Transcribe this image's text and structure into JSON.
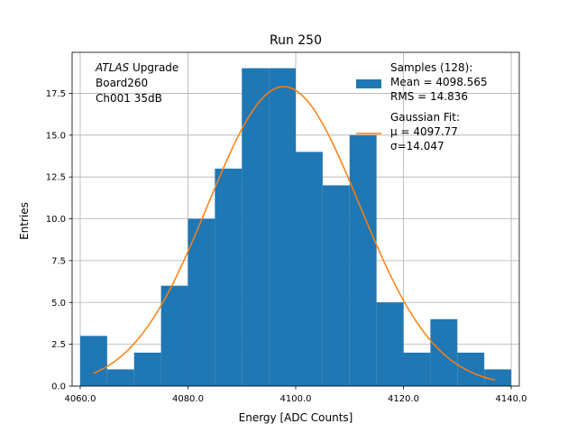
{
  "chart_data": {
    "type": "bar",
    "title": "Run 250",
    "xlabel": "Energy [ADC Counts]",
    "ylabel": "Entries",
    "xlim": [
      4058.5,
      4141.5
    ],
    "ylim": [
      0,
      19.95
    ],
    "grid": true,
    "x_ticks": [
      4060,
      4080,
      4100,
      4120,
      4140
    ],
    "x_tick_labels": [
      "4060.0",
      "4080.0",
      "4100.0",
      "4120.0",
      "4140.0"
    ],
    "y_ticks": [
      0,
      2.5,
      5,
      7.5,
      10,
      12.5,
      15,
      17.5
    ],
    "y_tick_labels": [
      "0.0",
      "2.5",
      "5.0",
      "7.5",
      "10.0",
      "12.5",
      "15.0",
      "17.5"
    ],
    "histogram": {
      "bin_edges": [
        4060,
        4065,
        4070,
        4075,
        4080,
        4085,
        4090,
        4095,
        4100,
        4105,
        4110,
        4115,
        4120,
        4125,
        4130,
        4135,
        4140
      ],
      "counts": [
        3,
        1,
        2,
        6,
        10,
        13,
        19,
        19,
        14,
        12,
        15,
        5,
        2,
        4,
        2,
        1
      ],
      "color": "#1f77b4"
    },
    "fit": {
      "type": "gaussian",
      "amplitude": 17.9,
      "mu": 4097.77,
      "sigma": 14.047,
      "x_range": [
        4062.5,
        4137
      ],
      "color": "#ff7f0e"
    },
    "annotation": {
      "lines": [
        {
          "italic": "ATLAS",
          "rest": " Upgrade"
        },
        {
          "italic": "",
          "rest": " Board260"
        },
        {
          "italic": "",
          "rest": " Ch001 35dB"
        }
      ],
      "position": "top-left"
    },
    "legend": {
      "position": "top-right",
      "entries": [
        {
          "label_lines": [
            "Samples (128):",
            " Mean = 4098.565",
            " RMS = 14.836"
          ],
          "marker": "patch",
          "color": "#1f77b4"
        },
        {
          "label_lines": [
            "Gaussian Fit:",
            " μ = 4097.77",
            " σ=14.047"
          ],
          "marker": "line",
          "color": "#ff7f0e"
        }
      ]
    }
  }
}
